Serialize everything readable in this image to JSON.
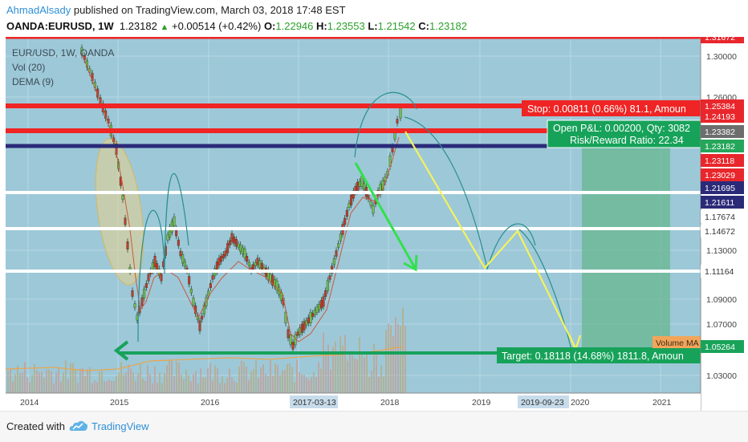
{
  "header": {
    "author": "AhmadAlsady",
    "published": "published on TradingView.com, March 03, 2018 17:48 EST",
    "symbol": "OANDA:EURUSD, 1W",
    "last": "1.23182",
    "change": "+0.00514 (+0.42%)",
    "o_label": "O:",
    "o": "1.22946",
    "h_label": "H:",
    "h": "1.23553",
    "l_label": "L:",
    "l": "1.21542",
    "c_label": "C:",
    "c": "1.23182"
  },
  "legend": {
    "title": "EUR/USD, 1W, OANDA",
    "vol": "Vol (20)",
    "dema": "DEMA (9)"
  },
  "price_axis": {
    "labels": [
      "1.30000",
      "1.26000",
      "1.13000",
      "1.09000",
      "1.07000",
      "1.03000"
    ],
    "badges": [
      {
        "text": "1.31672",
        "color": "#e8262c"
      },
      {
        "text": "1.25384",
        "color": "#e8262c"
      },
      {
        "text": "1.24193",
        "color": "#e8262c"
      },
      {
        "text": "1.23382",
        "color": "#6d6d6d"
      },
      {
        "text": "1.23182",
        "color": "#26a65b"
      },
      {
        "text": "1.23118",
        "color": "#e8262c"
      },
      {
        "text": "1.23029",
        "color": "#e8262c"
      },
      {
        "text": "1.21695",
        "color": "#2b2a78"
      },
      {
        "text": "1.21611",
        "color": "#2b2a78"
      },
      {
        "text": "1.17674",
        "color": "#ffffff"
      },
      {
        "text": "1.14672",
        "color": "#ffffff"
      },
      {
        "text": "1.11164",
        "color": "#ffffff"
      },
      {
        "text": "1.05264",
        "color": "#19a35a"
      }
    ]
  },
  "time_axis": {
    "labels": [
      "2014",
      "2015",
      "2016",
      "2018",
      "2019",
      "2020",
      "2021"
    ],
    "highlight_labels": [
      "2017-03-13",
      "2019-09-23"
    ]
  },
  "annotations": {
    "stop": "Stop: 0.00811 (0.66%) 81.1, Amoun",
    "open_pl": "Open P&L: 0.00200, Qty: 3082",
    "risk_reward": "Risk/Reward Ratio: 22.34",
    "target": "Target: 0.18118 (14.68%) 1811.8, Amoun",
    "volume_ma": "Volume MA"
  },
  "footer": {
    "created_with": "Created with",
    "brand": "TradingView"
  },
  "colors": {
    "chart_bg": "#9dc8d8",
    "stop_red": "#ef2424",
    "target_green": "#17a25a",
    "trend_yellow": "#f4f25c",
    "arrow_green": "#33e04d",
    "navy_line": "#2b2a78"
  }
}
